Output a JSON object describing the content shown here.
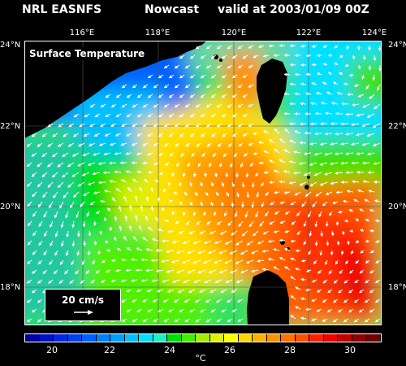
{
  "header": {
    "source": "NRL EASNFS",
    "product": "Nowcast",
    "valid": "valid at 2003/01/09 00Z"
  },
  "map": {
    "field_label": "Surface Temperature",
    "longitude_ticks": [
      "116°E",
      "118°E",
      "120°E",
      "122°E",
      "124°E"
    ],
    "latitude_ticks": [
      "24°N",
      "22°N",
      "20°N",
      "18°N"
    ],
    "land_color": "#000000",
    "vector_color": "#ffffff"
  },
  "reference_vector": {
    "label": "20 cm/s"
  },
  "colorbar": {
    "tick_labels": [
      "20",
      "22",
      "24",
      "26",
      "28",
      "30"
    ],
    "units": "°C",
    "colors": [
      "#0000a0",
      "#0010c8",
      "#0028e0",
      "#0040f0",
      "#0060ff",
      "#0080ff",
      "#00a0ff",
      "#00c0ff",
      "#00e0ff",
      "#20f0c0",
      "#00e000",
      "#40f000",
      "#a0f000",
      "#e0f000",
      "#ffff00",
      "#ffd800",
      "#ffb000",
      "#ff9000",
      "#ff7000",
      "#ff5000",
      "#ff2000",
      "#f00000",
      "#c00000",
      "#900000",
      "#700000"
    ]
  }
}
